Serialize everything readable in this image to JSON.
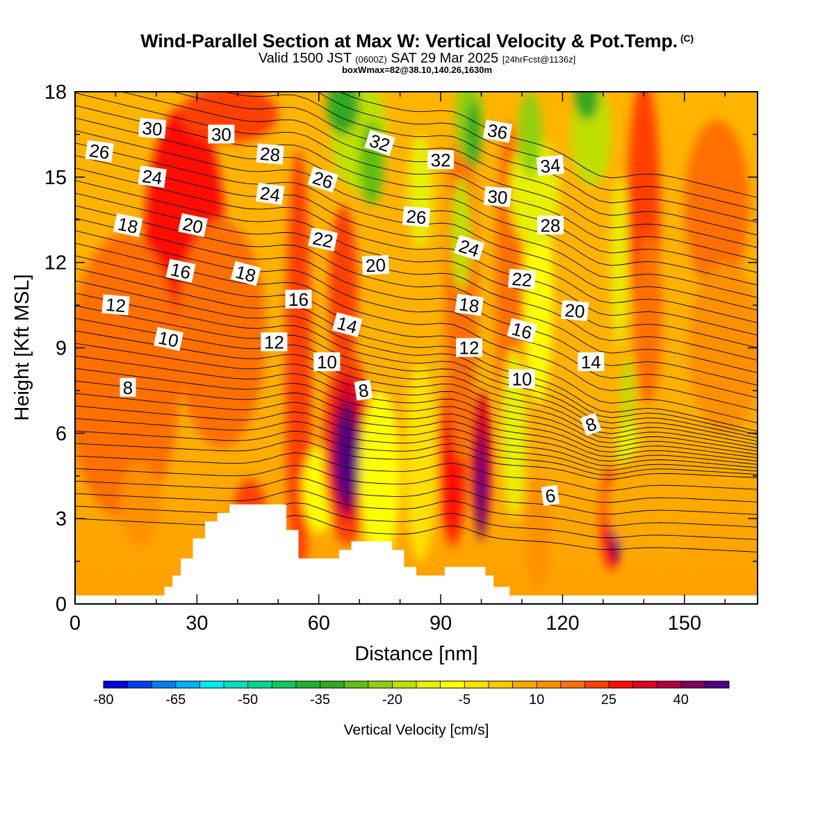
{
  "title": "Wind-Parallel Section at Max W: Vertical Velocity & Pot.Temp.",
  "title_mark": "(C)",
  "valid_line": {
    "valid": "Valid 1500 JST",
    "utc": "(0600Z)",
    "date": "SAT 29 Mar 2025",
    "forecast": "[24hrFcst@1136z]"
  },
  "box_line": "boxWmax=82@38.10,140.26,1630m",
  "chart_data": {
    "type": "heatmap",
    "xlabel": "Distance [nm]",
    "ylabel": "Height [Kft MSL]",
    "xlim": [
      0,
      168
    ],
    "ylim": [
      0,
      18
    ],
    "x_ticks": [
      0,
      30,
      60,
      90,
      120,
      150
    ],
    "y_ticks": [
      0,
      3,
      6,
      9,
      12,
      15,
      18
    ],
    "colorbar": {
      "label": "Vertical Velocity [cm/s]",
      "ticks": [
        "-80",
        "-65",
        "-50",
        "-35",
        "-20",
        "-5",
        "10",
        "25",
        "40"
      ],
      "levels": [
        -80,
        -75,
        -70,
        -65,
        -60,
        -55,
        -50,
        -45,
        -40,
        -35,
        -30,
        -25,
        -20,
        -15,
        -10,
        -5,
        0,
        5,
        10,
        15,
        20,
        25,
        30,
        35,
        40,
        45
      ],
      "colors": [
        "#0000dd",
        "#0040f0",
        "#0080f0",
        "#00b0f8",
        "#00e8f0",
        "#00e0c0",
        "#00d890",
        "#10c860",
        "#20b030",
        "#30a820",
        "#60c010",
        "#90d010",
        "#c0e000",
        "#e8f000",
        "#ffff00",
        "#ffe000",
        "#ffc800",
        "#ffa800",
        "#ff9000",
        "#ff7000",
        "#ff4000",
        "#ff1000",
        "#e00020",
        "#b00040",
        "#800060",
        "#500080"
      ]
    },
    "terrain_kft": [
      [
        0,
        0.3
      ],
      [
        22,
        0.3
      ],
      [
        22,
        0.6
      ],
      [
        24,
        0.6
      ],
      [
        24,
        1.0
      ],
      [
        26,
        1.0
      ],
      [
        26,
        1.6
      ],
      [
        29,
        1.6
      ],
      [
        29,
        2.3
      ],
      [
        32,
        2.3
      ],
      [
        32,
        2.9
      ],
      [
        35,
        2.9
      ],
      [
        35,
        3.2
      ],
      [
        38,
        3.2
      ],
      [
        38,
        3.5
      ],
      [
        52,
        3.5
      ],
      [
        52,
        2.6
      ],
      [
        55,
        2.6
      ],
      [
        55,
        1.6
      ],
      [
        65,
        1.6
      ],
      [
        65,
        1.9
      ],
      [
        68,
        1.9
      ],
      [
        68,
        2.2
      ],
      [
        78,
        2.2
      ],
      [
        78,
        1.9
      ],
      [
        81,
        1.9
      ],
      [
        81,
        1.3
      ],
      [
        84,
        1.3
      ],
      [
        84,
        1.0
      ],
      [
        87,
        1.0
      ],
      [
        87,
        1.0
      ],
      [
        91,
        1.0
      ],
      [
        91,
        1.3
      ],
      [
        101,
        1.3
      ],
      [
        101,
        1.0
      ],
      [
        103,
        1.0
      ],
      [
        103,
        0.6
      ],
      [
        107,
        0.6
      ],
      [
        107,
        0.3
      ],
      [
        168,
        0.3
      ]
    ],
    "isentrope_labels": [
      {
        "text": "30",
        "x": 19,
        "y": 16.7,
        "angle": 5
      },
      {
        "text": "30",
        "x": 36,
        "y": 16.5,
        "angle": 0
      },
      {
        "text": "26",
        "x": 6,
        "y": 15.9,
        "angle": 8
      },
      {
        "text": "28",
        "x": 48,
        "y": 15.8,
        "angle": 5
      },
      {
        "text": "32",
        "x": 75,
        "y": 16.2,
        "angle": 18
      },
      {
        "text": "36",
        "x": 104,
        "y": 16.6,
        "angle": 10
      },
      {
        "text": "32",
        "x": 90,
        "y": 15.6,
        "angle": 0
      },
      {
        "text": "34",
        "x": 117,
        "y": 15.4,
        "angle": -5
      },
      {
        "text": "24",
        "x": 19,
        "y": 15.0,
        "angle": 8
      },
      {
        "text": "26",
        "x": 61,
        "y": 14.9,
        "angle": 18
      },
      {
        "text": "24",
        "x": 48,
        "y": 14.4,
        "angle": 8
      },
      {
        "text": "30",
        "x": 104,
        "y": 14.3,
        "angle": 5
      },
      {
        "text": "26",
        "x": 84,
        "y": 13.6,
        "angle": 5
      },
      {
        "text": "28",
        "x": 117,
        "y": 13.3,
        "angle": 0
      },
      {
        "text": "18",
        "x": 13,
        "y": 13.3,
        "angle": 12
      },
      {
        "text": "20",
        "x": 29,
        "y": 13.3,
        "angle": 12
      },
      {
        "text": "22",
        "x": 61,
        "y": 12.8,
        "angle": 12
      },
      {
        "text": "24",
        "x": 97,
        "y": 12.5,
        "angle": 18
      },
      {
        "text": "20",
        "x": 74,
        "y": 11.9,
        "angle": -3
      },
      {
        "text": "16",
        "x": 26,
        "y": 11.7,
        "angle": 12
      },
      {
        "text": "18",
        "x": 42,
        "y": 11.6,
        "angle": 15
      },
      {
        "text": "22",
        "x": 110,
        "y": 11.4,
        "angle": 5
      },
      {
        "text": "16",
        "x": 55,
        "y": 10.7,
        "angle": 0
      },
      {
        "text": "12",
        "x": 10,
        "y": 10.5,
        "angle": 5
      },
      {
        "text": "18",
        "x": 97,
        "y": 10.5,
        "angle": 8
      },
      {
        "text": "20",
        "x": 123,
        "y": 10.3,
        "angle": 5
      },
      {
        "text": "14",
        "x": 67,
        "y": 9.8,
        "angle": 15
      },
      {
        "text": "16",
        "x": 110,
        "y": 9.6,
        "angle": 15
      },
      {
        "text": "10",
        "x": 23,
        "y": 9.3,
        "angle": 12
      },
      {
        "text": "12",
        "x": 49,
        "y": 9.2,
        "angle": 0
      },
      {
        "text": "12",
        "x": 97,
        "y": 9.0,
        "angle": 0
      },
      {
        "text": "10",
        "x": 62,
        "y": 8.5,
        "angle": 0
      },
      {
        "text": "14",
        "x": 127,
        "y": 8.5,
        "angle": 0
      },
      {
        "text": "10",
        "x": 110,
        "y": 7.9,
        "angle": 0
      },
      {
        "text": "8",
        "x": 13,
        "y": 7.6,
        "angle": 0
      },
      {
        "text": "8",
        "x": 71,
        "y": 7.5,
        "angle": -8
      },
      {
        "text": "8",
        "x": 127,
        "y": 6.3,
        "angle": -20
      },
      {
        "text": "6",
        "x": 117,
        "y": 3.8,
        "angle": -8
      }
    ]
  }
}
